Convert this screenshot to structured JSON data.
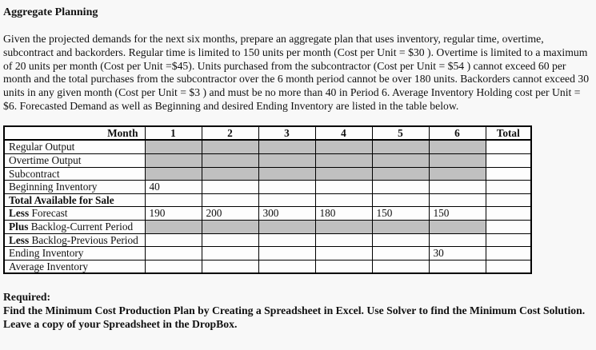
{
  "page": {
    "title": "Aggregate Planning",
    "intro": "Given the projected demands for the next six months, prepare an aggregate plan that uses inventory, regular time, overtime, subcontract and backorders. Regular time is limited to 150 units per month (Cost per Unit = $30 ). Overtime is limited to a maximum of 20 units per month (Cost per Unit =$45). Units purchased from the subcontractor (Cost per Unit = $54 ) cannot exceed 60 per month and the total purchases from the subcontractor over the 6 month period cannot be over 180 units. Backorders cannot exceed 30 units in any given month (Cost per Unit = $3 ) and must be no more than 40 in Period 6. Average Inventory Holding cost per Unit = $6. Forecasted Demand as well as Beginning and desired Ending Inventory are listed in the table below.",
    "required_label": "Required:",
    "required_body": "Find the Minimum Cost Production Plan by Creating a Spreadsheet in Excel. Use Solver to find the Minimum Cost Solution. Leave a copy of your Spreadsheet in the DropBox."
  },
  "colors": {
    "page-bg": "#f8f8f8",
    "text": "#111111",
    "table-border": "#000000",
    "cell-shaded": "#c0c0c0"
  },
  "table": {
    "header": {
      "row_label": "Month",
      "months": [
        "1",
        "2",
        "3",
        "4",
        "5",
        "6"
      ],
      "total_label": "Total"
    },
    "rows": [
      {
        "label_bold": "",
        "label": "Regular Output",
        "cells": [
          "",
          "",
          "",
          "",
          "",
          ""
        ],
        "total": "",
        "shaded": true
      },
      {
        "label_bold": "",
        "label": "Overtime Output",
        "cells": [
          "",
          "",
          "",
          "",
          "",
          ""
        ],
        "total": "",
        "shaded": true
      },
      {
        "label_bold": "",
        "label": "Subcontract",
        "cells": [
          "",
          "",
          "",
          "",
          "",
          ""
        ],
        "total": "",
        "shaded": true
      },
      {
        "label_bold": "",
        "label": "Beginning Inventory",
        "cells": [
          "40",
          "",
          "",
          "",
          "",
          ""
        ],
        "total": "",
        "shaded": false
      },
      {
        "label_bold": "Total Available for Sale",
        "label": "",
        "cells": [
          "",
          "",
          "",
          "",
          "",
          ""
        ],
        "total": "",
        "shaded": false
      },
      {
        "label_bold": "Less",
        "label": " Forecast",
        "cells": [
          "190",
          "200",
          "300",
          "180",
          "150",
          "150"
        ],
        "total": "",
        "shaded": false
      },
      {
        "label_bold": "Plus",
        "label": " Backlog-Current Period",
        "cells": [
          "",
          "",
          "",
          "",
          "",
          ""
        ],
        "total": "",
        "shaded": true
      },
      {
        "label_bold": "Less",
        "label": " Backlog-Previous Period",
        "cells": [
          "",
          "",
          "",
          "",
          "",
          ""
        ],
        "total": "",
        "shaded": false
      },
      {
        "label_bold": "",
        "label": "Ending Inventory",
        "cells": [
          "",
          "",
          "",
          "",
          "",
          "30"
        ],
        "total": "",
        "shaded": false
      },
      {
        "label_bold": "",
        "label": "Average Inventory",
        "cells": [
          "",
          "",
          "",
          "",
          "",
          ""
        ],
        "total": "",
        "shaded": false
      }
    ]
  }
}
